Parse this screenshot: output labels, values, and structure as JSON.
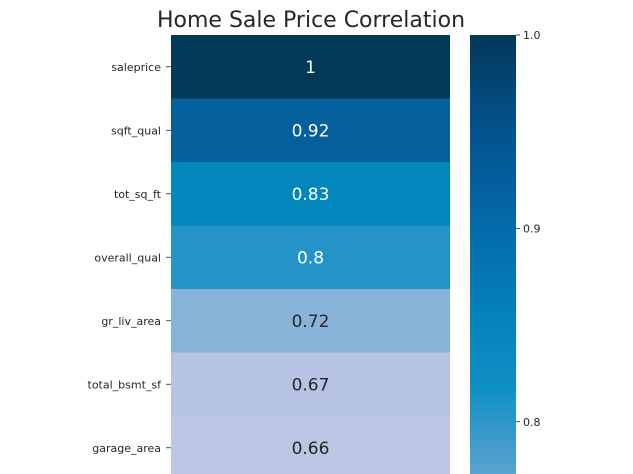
{
  "chart_data": {
    "type": "heatmap",
    "title": "Home Sale Price Correlation",
    "xlabel": "",
    "ylabel": "",
    "rows": [
      "saleprice",
      "sqft_qual",
      "tot_sq_ft",
      "overall_qual",
      "gr_liv_area",
      "total_bsmt_sf",
      "garage_area"
    ],
    "values": [
      1.0,
      0.92,
      0.83,
      0.8,
      0.72,
      0.67,
      0.66
    ],
    "value_labels": [
      "1",
      "0.92",
      "0.83",
      "0.8",
      "0.72",
      "0.67",
      "0.66"
    ],
    "cell_colors": [
      "#023858",
      "#045f9b",
      "#0287bd",
      "#2493c8",
      "#88b4d9",
      "#b7c3e2",
      "#bcc5e3"
    ],
    "text_colors": [
      "#ffffff",
      "#ffffff",
      "#ffffff",
      "#ffffff",
      "#262626",
      "#262626",
      "#262626"
    ],
    "colormap": "PuBu",
    "colorbar": {
      "ticks": [
        1.0,
        0.9,
        0.8
      ],
      "tick_labels": [
        "1.0",
        "0.9",
        "0.8"
      ],
      "top_value": 1.0,
      "bottom_value": 0.773
    }
  }
}
